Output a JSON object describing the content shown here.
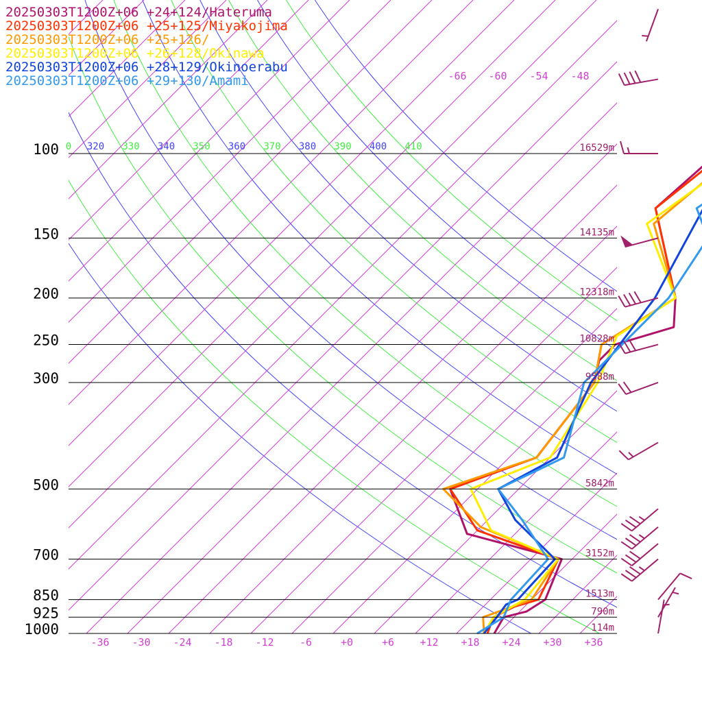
{
  "chart_data": {
    "type": "line",
    "chart_kind": "skew-T log-p sounding",
    "title": "",
    "xlabel": "",
    "ylabel": "",
    "y_scale": "log",
    "pressure_levels": [
      {
        "p": 100,
        "label": "100",
        "height": "16529m"
      },
      {
        "p": 150,
        "label": "150",
        "height": "14135m"
      },
      {
        "p": 200,
        "label": "200",
        "height": "12318m"
      },
      {
        "p": 250,
        "label": "250",
        "height": "10828m"
      },
      {
        "p": 300,
        "label": "300",
        "height": "9588m"
      },
      {
        "p": 500,
        "label": "500",
        "height": "5842m"
      },
      {
        "p": 700,
        "label": "700",
        "height": "3152m"
      },
      {
        "p": 850,
        "label": "850",
        "height": "1513m"
      },
      {
        "p": 925,
        "label": "925",
        "height": "790m"
      },
      {
        "p": 1000,
        "label": "1000",
        "height": "114m"
      }
    ],
    "x_ticks": [
      "-36",
      "-30",
      "-24",
      "-18",
      "-12",
      "-6",
      "+0",
      "+6",
      "+12",
      "+18",
      "+24",
      "+30",
      "+36"
    ],
    "x_tick_values": [
      -36,
      -30,
      -24,
      -18,
      -12,
      -6,
      0,
      6,
      12,
      18,
      24,
      30,
      36
    ],
    "upper_temp_labels": [
      "-66",
      "-60",
      "-54",
      "-48"
    ],
    "theta_labels": [
      "0",
      "320",
      "330",
      "340",
      "350",
      "360",
      "370",
      "380",
      "390",
      "400",
      "410"
    ],
    "colors": {
      "isotherm": "#d040d0",
      "isobar": "#000000",
      "theta_a": "#4040ff",
      "theta_b": "#40ee40",
      "height_label": "#a0206a",
      "wind_barb": "#a0206a"
    },
    "series": [
      {
        "name": "20250303T1200Z+06 +24+124/Hateruma",
        "color": "#b0126a",
        "points": [
          [
            1000,
            21.5
          ],
          [
            925,
            20.5
          ],
          [
            900,
            23
          ],
          [
            850,
            24
          ],
          [
            700,
            20.5
          ],
          [
            620,
            3
          ],
          [
            500,
            -6
          ],
          [
            430,
            2
          ],
          [
            300,
            -0.5
          ],
          [
            270,
            -3
          ],
          [
            250,
            -3
          ],
          [
            230,
            3
          ],
          [
            200,
            -1
          ],
          [
            130,
            -17
          ],
          [
            100,
            -16
          ],
          [
            70,
            -13
          ],
          [
            50,
            30
          ],
          [
            40,
            50
          ]
        ]
      },
      {
        "name": "20250303T1200Z+06 +25+125/Miyakojima",
        "color": "#ff3300",
        "points": [
          [
            1000,
            20.5
          ],
          [
            925,
            19
          ],
          [
            880,
            20.5
          ],
          [
            850,
            23
          ],
          [
            700,
            20
          ],
          [
            610,
            4
          ],
          [
            500,
            -6
          ],
          [
            430,
            2
          ],
          [
            300,
            -0.5
          ],
          [
            250,
            -5
          ],
          [
            200,
            -1
          ],
          [
            130,
            -17
          ],
          [
            100,
            -15
          ],
          [
            70,
            -11
          ],
          [
            50,
            31
          ],
          [
            40,
            50
          ]
        ]
      },
      {
        "name": "20250303T1200Z+06 +25+126/",
        "color": "#ff9900",
        "points": [
          [
            1000,
            20
          ],
          [
            925,
            17.5
          ],
          [
            850,
            22
          ],
          [
            700,
            20
          ],
          [
            600,
            4
          ],
          [
            500,
            -7
          ],
          [
            430,
            2
          ],
          [
            300,
            -0.5
          ],
          [
            250,
            -5
          ],
          [
            200,
            -1
          ],
          [
            140,
            -15
          ],
          [
            100,
            -13
          ],
          [
            70,
            -10
          ],
          [
            50,
            32
          ],
          [
            40,
            50
          ]
        ]
      },
      {
        "name": "20250303T1200Z+06 +26+128/Okinawa",
        "color": "#ffee00",
        "points": [
          [
            1000,
            20
          ],
          [
            925,
            19
          ],
          [
            850,
            21
          ],
          [
            700,
            20
          ],
          [
            610,
            6
          ],
          [
            500,
            -3
          ],
          [
            430,
            4
          ],
          [
            300,
            0
          ],
          [
            240,
            -4
          ],
          [
            200,
            -1
          ],
          [
            140,
            -16
          ],
          [
            100,
            -12
          ],
          [
            70,
            -8
          ],
          [
            50,
            33
          ],
          [
            40,
            50
          ]
        ]
      },
      {
        "name": "20250303T1200Z+06 +28+129/Okinoerabu",
        "color": "#1144dd",
        "points": [
          [
            1000,
            20
          ],
          [
            925,
            19.5
          ],
          [
            870,
            19
          ],
          [
            850,
            20
          ],
          [
            700,
            19.5
          ],
          [
            580,
            8
          ],
          [
            500,
            1
          ],
          [
            430,
            5
          ],
          [
            300,
            -1
          ],
          [
            200,
            -4
          ],
          [
            130,
            -10
          ],
          [
            100,
            -8
          ],
          [
            70,
            -6
          ],
          [
            50,
            34
          ],
          [
            40,
            50
          ]
        ]
      },
      {
        "name": "20250303T1200Z+06 +29+130/Amami",
        "color": "#3399ee",
        "points": [
          [
            1000,
            19
          ],
          [
            925,
            20.5
          ],
          [
            850,
            19
          ],
          [
            700,
            18.5
          ],
          [
            580,
            9
          ],
          [
            500,
            1
          ],
          [
            430,
            6
          ],
          [
            300,
            -2
          ],
          [
            200,
            -2
          ],
          [
            150,
            -5
          ],
          [
            130,
            -11
          ],
          [
            100,
            -7
          ],
          [
            70,
            -4
          ],
          [
            50,
            35
          ],
          [
            40,
            50
          ]
        ]
      }
    ],
    "wind_barbs": [
      {
        "p": 1000,
        "dir": 10,
        "speed": 5
      },
      {
        "p": 925,
        "dir": 30,
        "speed": 5
      },
      {
        "p": 850,
        "dir": 40,
        "speed": 10
      },
      {
        "p": 700,
        "dir": 230,
        "speed": 35
      },
      {
        "p": 650,
        "dir": 230,
        "speed": 30
      },
      {
        "p": 600,
        "dir": 230,
        "speed": 35
      },
      {
        "p": 550,
        "dir": 230,
        "speed": 35
      },
      {
        "p": 400,
        "dir": 240,
        "speed": 15
      },
      {
        "p": 300,
        "dir": 250,
        "speed": 20
      },
      {
        "p": 250,
        "dir": 255,
        "speed": 30
      },
      {
        "p": 200,
        "dir": 255,
        "speed": 40
      },
      {
        "p": 150,
        "dir": 255,
        "speed": 50
      },
      {
        "p": 100,
        "dir": 270,
        "speed": 15
      },
      {
        "p": 70,
        "dir": 260,
        "speed": 40
      },
      {
        "p": 50,
        "dir": 200,
        "speed": 5
      }
    ]
  }
}
